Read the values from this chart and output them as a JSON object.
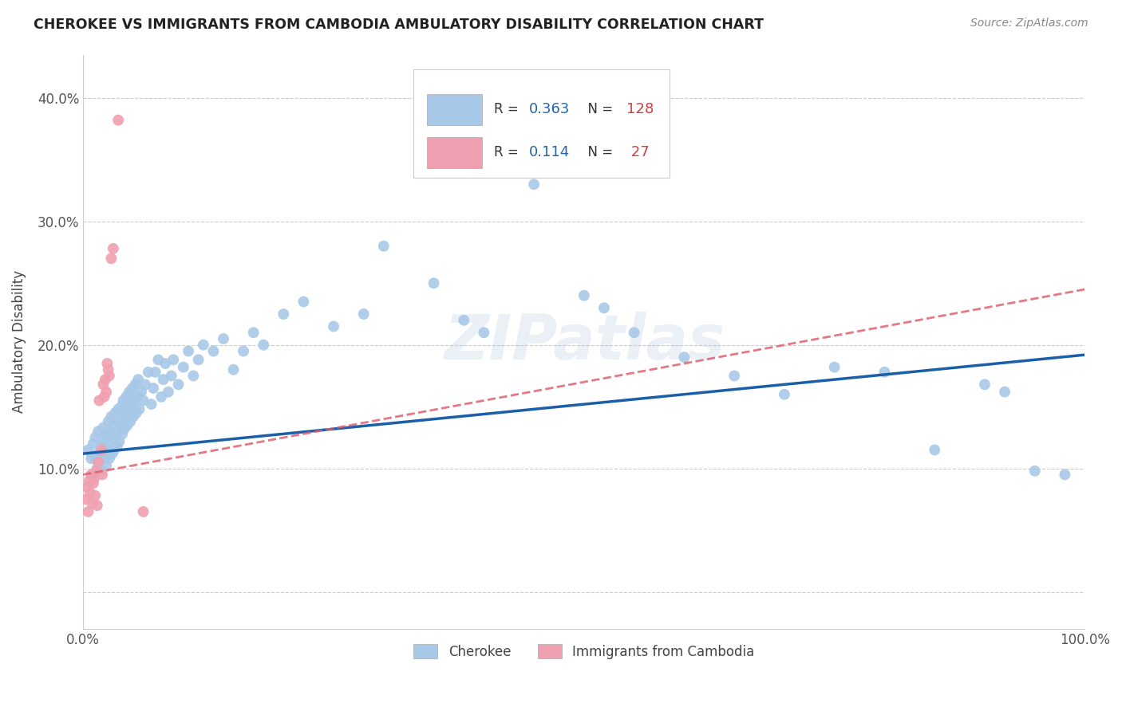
{
  "title": "CHEROKEE VS IMMIGRANTS FROM CAMBODIA AMBULATORY DISABILITY CORRELATION CHART",
  "source": "Source: ZipAtlas.com",
  "ylabel": "Ambulatory Disability",
  "xlim": [
    0.0,
    1.0
  ],
  "ylim": [
    -0.03,
    0.435
  ],
  "yticks": [
    0.0,
    0.1,
    0.2,
    0.3,
    0.4
  ],
  "yticklabels": [
    "",
    "10.0%",
    "20.0%",
    "30.0%",
    "40.0%"
  ],
  "xtick_positions": [
    0.0,
    0.2,
    0.4,
    0.6,
    0.8,
    1.0
  ],
  "xticklabels": [
    "0.0%",
    "",
    "",
    "",
    "",
    "100.0%"
  ],
  "legend_labels": [
    "Cherokee",
    "Immigrants from Cambodia"
  ],
  "blue_color": "#a8c8e8",
  "pink_color": "#f0a0b0",
  "blue_line_color": "#1a5fa8",
  "pink_line_color": "#e06070",
  "watermark": "ZIPatlas",
  "blue_scatter_x": [
    0.005,
    0.008,
    0.01,
    0.01,
    0.012,
    0.012,
    0.014,
    0.015,
    0.015,
    0.016,
    0.018,
    0.018,
    0.02,
    0.02,
    0.021,
    0.022,
    0.022,
    0.023,
    0.024,
    0.025,
    0.025,
    0.026,
    0.027,
    0.028,
    0.028,
    0.029,
    0.03,
    0.03,
    0.031,
    0.032,
    0.033,
    0.034,
    0.035,
    0.035,
    0.036,
    0.037,
    0.038,
    0.039,
    0.04,
    0.04,
    0.041,
    0.042,
    0.043,
    0.044,
    0.045,
    0.046,
    0.047,
    0.048,
    0.049,
    0.05,
    0.051,
    0.052,
    0.053,
    0.054,
    0.055,
    0.056,
    0.058,
    0.06,
    0.062,
    0.065,
    0.068,
    0.07,
    0.072,
    0.075,
    0.078,
    0.08,
    0.082,
    0.085,
    0.088,
    0.09,
    0.095,
    0.1,
    0.105,
    0.11,
    0.115,
    0.12,
    0.13,
    0.14,
    0.15,
    0.16,
    0.17,
    0.18,
    0.2,
    0.22,
    0.25,
    0.28,
    0.3,
    0.35,
    0.38,
    0.4,
    0.45,
    0.5,
    0.52,
    0.55,
    0.6,
    0.65,
    0.7,
    0.75,
    0.8,
    0.85,
    0.9,
    0.92,
    0.95,
    0.98
  ],
  "blue_scatter_y": [
    0.115,
    0.108,
    0.12,
    0.095,
    0.11,
    0.125,
    0.1,
    0.13,
    0.112,
    0.105,
    0.118,
    0.098,
    0.122,
    0.133,
    0.108,
    0.115,
    0.128,
    0.102,
    0.125,
    0.115,
    0.138,
    0.108,
    0.13,
    0.118,
    0.142,
    0.112,
    0.125,
    0.135,
    0.115,
    0.145,
    0.128,
    0.118,
    0.138,
    0.148,
    0.122,
    0.135,
    0.15,
    0.128,
    0.142,
    0.155,
    0.132,
    0.145,
    0.158,
    0.135,
    0.148,
    0.162,
    0.138,
    0.152,
    0.165,
    0.142,
    0.155,
    0.168,
    0.145,
    0.158,
    0.172,
    0.148,
    0.162,
    0.155,
    0.168,
    0.178,
    0.152,
    0.165,
    0.178,
    0.188,
    0.158,
    0.172,
    0.185,
    0.162,
    0.175,
    0.188,
    0.168,
    0.182,
    0.195,
    0.175,
    0.188,
    0.2,
    0.195,
    0.205,
    0.18,
    0.195,
    0.21,
    0.2,
    0.225,
    0.235,
    0.215,
    0.225,
    0.28,
    0.25,
    0.22,
    0.21,
    0.33,
    0.24,
    0.23,
    0.21,
    0.19,
    0.175,
    0.16,
    0.182,
    0.178,
    0.115,
    0.168,
    0.162,
    0.098,
    0.095
  ],
  "pink_scatter_x": [
    0.003,
    0.004,
    0.005,
    0.006,
    0.007,
    0.008,
    0.009,
    0.01,
    0.011,
    0.012,
    0.013,
    0.014,
    0.015,
    0.016,
    0.018,
    0.019,
    0.02,
    0.021,
    0.022,
    0.023,
    0.024,
    0.025,
    0.026,
    0.028,
    0.03,
    0.035,
    0.06
  ],
  "pink_scatter_y": [
    0.075,
    0.085,
    0.065,
    0.09,
    0.08,
    0.095,
    0.072,
    0.088,
    0.092,
    0.078,
    0.098,
    0.07,
    0.105,
    0.155,
    0.115,
    0.095,
    0.168,
    0.158,
    0.172,
    0.162,
    0.185,
    0.18,
    0.175,
    0.27,
    0.278,
    0.382,
    0.065
  ],
  "blue_trend_x": [
    0.0,
    1.0
  ],
  "blue_trend_y": [
    0.112,
    0.192
  ],
  "pink_trend_x": [
    0.0,
    1.0
  ],
  "pink_trend_y": [
    0.095,
    0.245
  ]
}
